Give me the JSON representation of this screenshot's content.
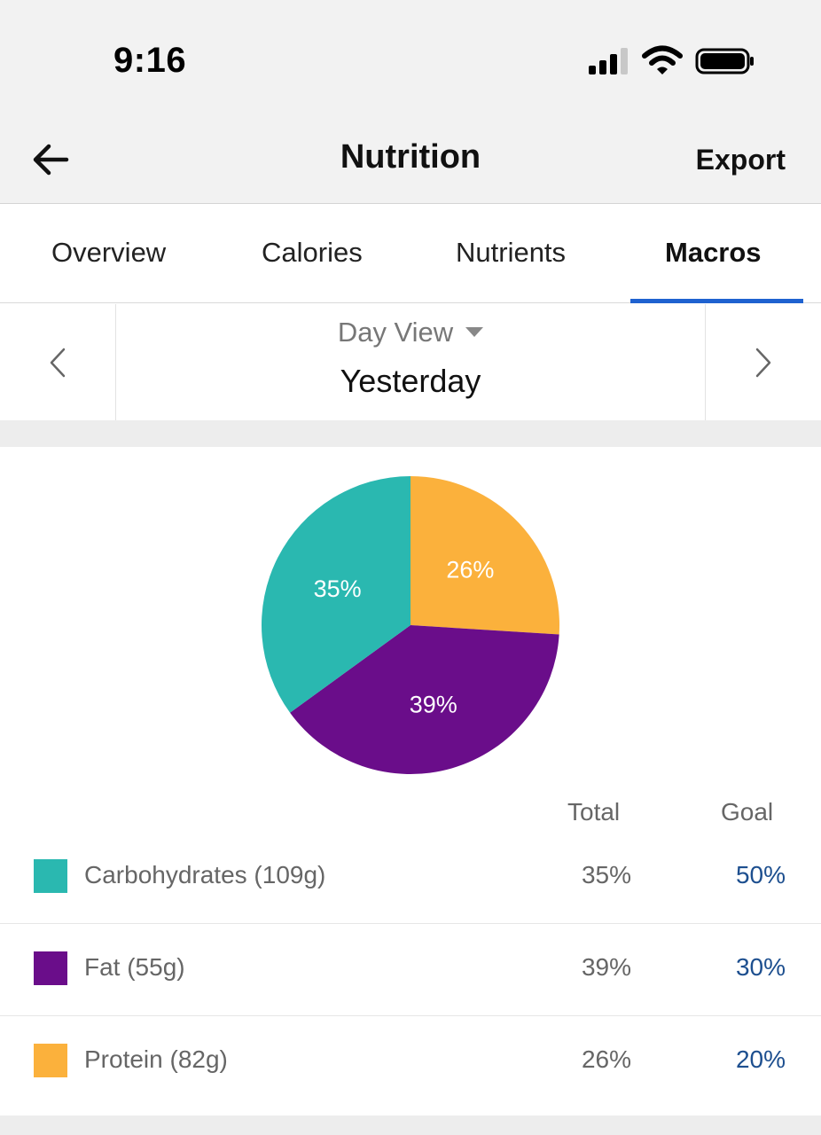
{
  "status_bar": {
    "time": "9:16"
  },
  "header": {
    "title": "Nutrition",
    "export_label": "Export"
  },
  "tabs": [
    {
      "label": "Overview",
      "active": false
    },
    {
      "label": "Calories",
      "active": false
    },
    {
      "label": "Nutrients",
      "active": false
    },
    {
      "label": "Macros",
      "active": true
    }
  ],
  "date_nav": {
    "view": "Day View",
    "date": "Yesterday"
  },
  "colors": {
    "carbohydrates": "#2ab8b0",
    "fat": "#6a0d8a",
    "protein": "#fbb13c",
    "accent": "#1f62d0",
    "goal_text": "#1d4f8f"
  },
  "chart_data": {
    "type": "pie",
    "slices": [
      {
        "label": "26%",
        "value": 26,
        "color": "#fbb13c"
      },
      {
        "label": "39%",
        "value": 39,
        "color": "#6a0d8a"
      },
      {
        "label": "35%",
        "value": 35,
        "color": "#2ab8b0"
      }
    ]
  },
  "table": {
    "total_header": "Total",
    "goal_header": "Goal",
    "rows": [
      {
        "name": "Carbohydrates (109g)",
        "total": "35%",
        "goal": "50%",
        "color": "#2ab8b0"
      },
      {
        "name": "Fat (55g)",
        "total": "39%",
        "goal": "30%",
        "color": "#6a0d8a"
      },
      {
        "name": "Protein (82g)",
        "total": "26%",
        "goal": "20%",
        "color": "#fbb13c"
      }
    ]
  }
}
